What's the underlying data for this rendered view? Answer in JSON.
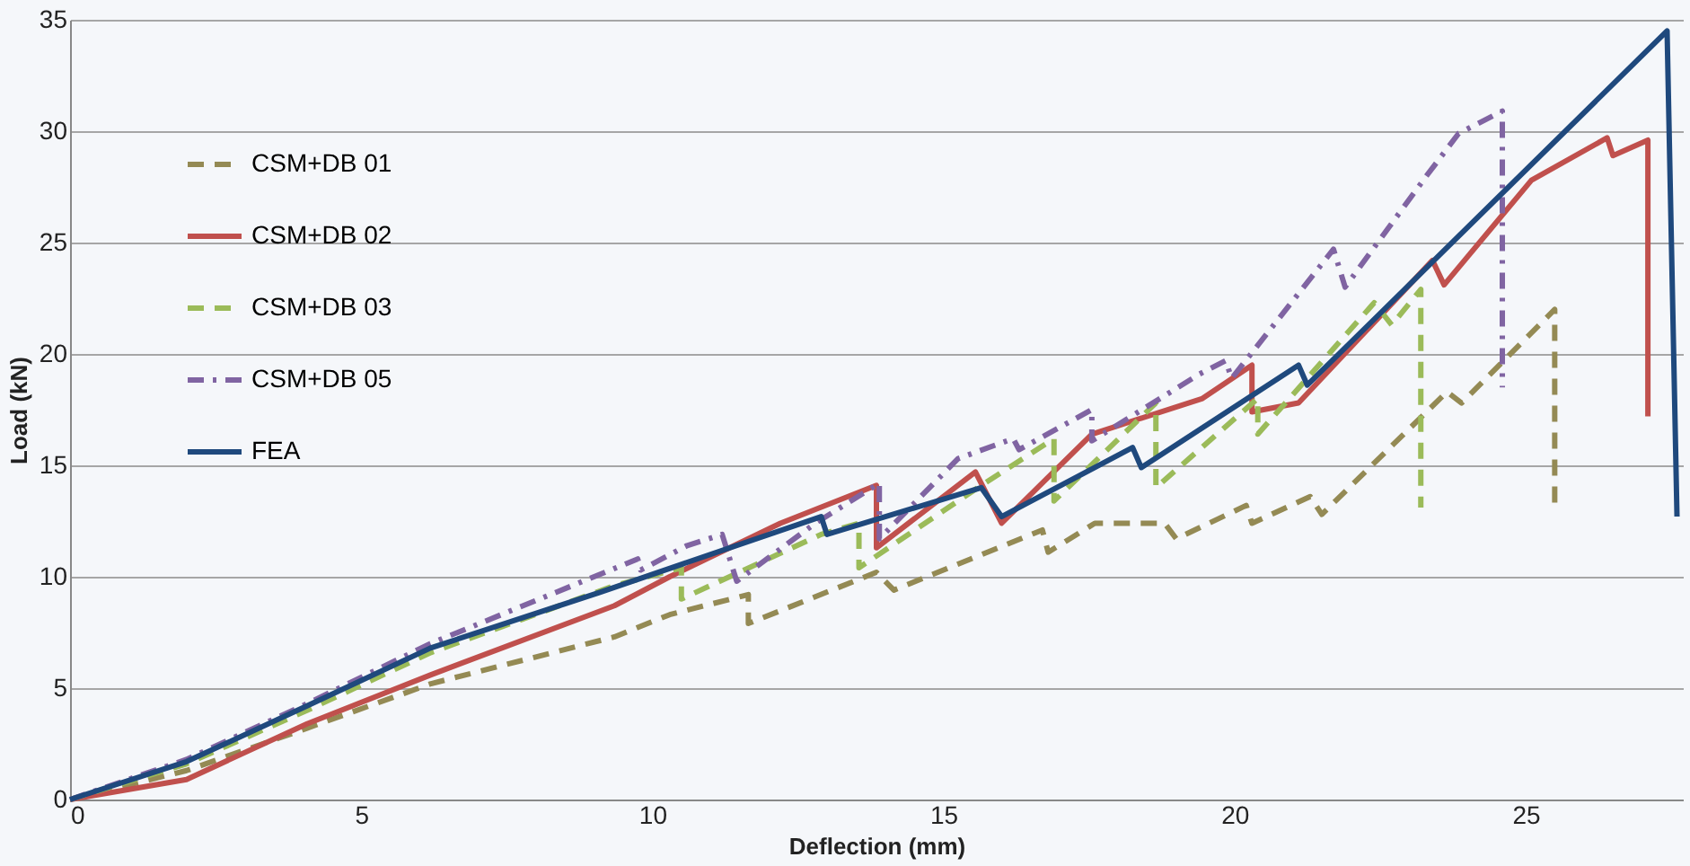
{
  "chart_data": {
    "type": "line",
    "xlabel": "Deflection (mm)",
    "ylabel": "Load (kN)",
    "xlim": [
      0,
      27.7
    ],
    "xticks": [
      0,
      5,
      10,
      15,
      20,
      25
    ],
    "ylim": [
      0,
      35
    ],
    "yticks": [
      0,
      5,
      10,
      15,
      20,
      25,
      30,
      35
    ],
    "grid": "y",
    "legend": "top left",
    "marker": "none",
    "series": [
      {
        "name": "CSM+DB 01",
        "color": "#948a54",
        "line_style": "dashed",
        "x": [
          0,
          2.0,
          4.07,
          6.2,
          9.35,
          10.3,
          11.65,
          11.65,
          13.85,
          14.15,
          16.7,
          16.8,
          17.6,
          18.8,
          19.0,
          20.2,
          20.3,
          21.3,
          21.5,
          23.65,
          23.9,
          25.5,
          25.5
        ],
        "values": [
          0,
          1.3,
          3.2,
          5.2,
          7.3,
          8.3,
          9.2,
          7.9,
          10.2,
          9.4,
          12.1,
          11.1,
          12.4,
          12.4,
          11.7,
          13.2,
          12.4,
          13.6,
          12.8,
          18.3,
          17.8,
          22.0,
          13.2
        ]
      },
      {
        "name": "CSM+DB 02",
        "color": "#c0504d",
        "line_style": "solid",
        "x": [
          0,
          2.0,
          4.07,
          6.2,
          9.35,
          10.3,
          12.2,
          13.85,
          13.85,
          15.55,
          16.0,
          17.55,
          19.45,
          20.3,
          20.3,
          21.1,
          23.4,
          23.6,
          25.1,
          26.4,
          26.5,
          27.1,
          27.1
        ],
        "values": [
          0,
          0.9,
          3.4,
          5.6,
          8.7,
          10.0,
          12.4,
          14.1,
          11.3,
          14.7,
          12.4,
          16.4,
          18.0,
          19.5,
          17.4,
          17.8,
          24.2,
          23.1,
          27.8,
          29.7,
          28.9,
          29.6,
          17.2
        ]
      },
      {
        "name": "CSM+DB 03",
        "color": "#9bbb59",
        "line_style": "dashed",
        "x": [
          0,
          2.0,
          4.07,
          6.2,
          9.35,
          10.5,
          10.5,
          12.9,
          13.55,
          13.55,
          15.65,
          16.9,
          16.9,
          18.65,
          18.65,
          20.4,
          20.4,
          22.4,
          22.7,
          23.2,
          23.2
        ],
        "values": [
          0,
          1.6,
          4.0,
          6.6,
          9.6,
          10.4,
          9.0,
          11.9,
          12.4,
          10.4,
          14.1,
          16.2,
          13.4,
          17.8,
          14.0,
          18.0,
          16.4,
          22.3,
          21.3,
          22.9,
          13.1
        ]
      },
      {
        "name": "CSM+DB 05",
        "color": "#8064a2",
        "line_style": "dotted",
        "x": [
          0,
          2.0,
          4.07,
          6.19,
          9.75,
          9.8,
          10.6,
          11.2,
          11.45,
          12.8,
          13.9,
          13.9,
          15.25,
          16.2,
          16.3,
          17.55,
          17.55,
          19.4,
          19.85,
          19.95,
          21.7,
          21.9,
          23.3,
          23.85,
          24.6,
          24.6
        ],
        "values": [
          0,
          1.8,
          4.3,
          7.0,
          10.8,
          10.3,
          11.4,
          11.9,
          9.8,
          12.4,
          14.2,
          11.7,
          15.3,
          16.2,
          15.7,
          17.5,
          16.1,
          19.1,
          19.7,
          18.9,
          24.7,
          23.0,
          28.0,
          29.9,
          30.9,
          18.5
        ]
      },
      {
        "name": "FEA",
        "color": "#1f497d",
        "line_style": "solid",
        "x": [
          0,
          2.0,
          4.07,
          6.19,
          9.1,
          12.9,
          13.0,
          15.65,
          16.0,
          18.25,
          18.4,
          21.1,
          21.25,
          27.43,
          27.6
        ],
        "values": [
          0,
          1.7,
          4.2,
          6.8,
          9.3,
          12.7,
          11.9,
          14.0,
          12.7,
          15.8,
          14.9,
          19.5,
          18.6,
          34.5,
          12.7
        ]
      }
    ]
  }
}
